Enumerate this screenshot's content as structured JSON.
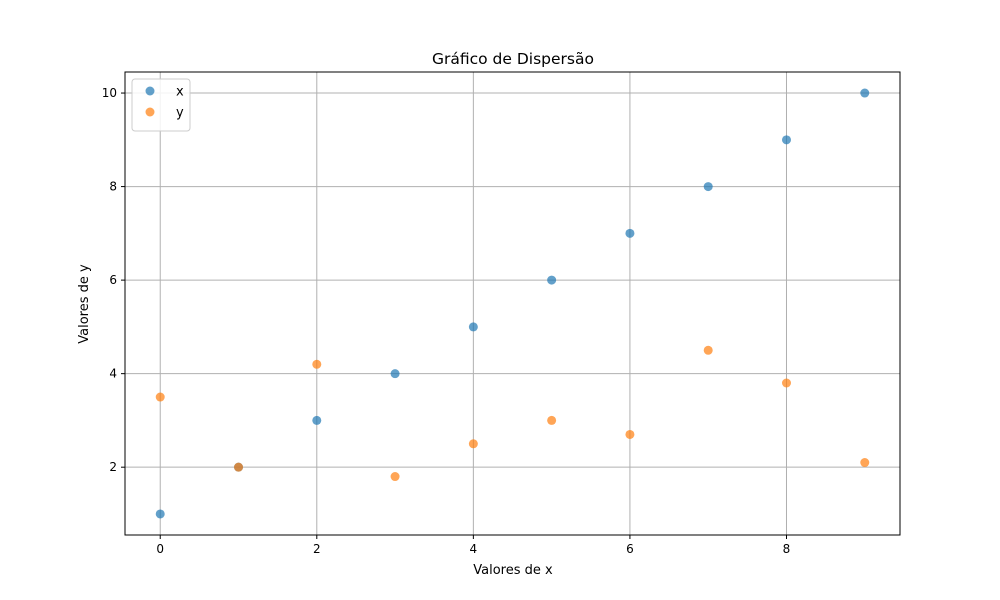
{
  "chart_data": {
    "type": "scatter",
    "title": "Gráfico de Dispersão",
    "xlabel": "Valores de x",
    "ylabel": "Valores de y",
    "xlim": [
      -0.45,
      9.45
    ],
    "ylim": [
      0.55,
      10.45
    ],
    "xticks": [
      0,
      2,
      4,
      6,
      8
    ],
    "yticks": [
      2,
      4,
      6,
      8,
      10
    ],
    "grid": true,
    "legend_position": "top-left",
    "series": [
      {
        "name": "x",
        "color": "#1f77b4",
        "x": [
          0,
          1,
          2,
          3,
          4,
          5,
          6,
          7,
          8,
          9
        ],
        "y": [
          1,
          2,
          3,
          4,
          5,
          6,
          7,
          8,
          9,
          10
        ]
      },
      {
        "name": "y",
        "color": "#ff7f0e",
        "x": [
          0,
          1,
          2,
          3,
          4,
          5,
          6,
          7,
          8,
          9
        ],
        "y": [
          3.5,
          2.0,
          4.2,
          1.8,
          2.5,
          3.0,
          2.7,
          4.5,
          3.8,
          2.1
        ]
      }
    ]
  }
}
